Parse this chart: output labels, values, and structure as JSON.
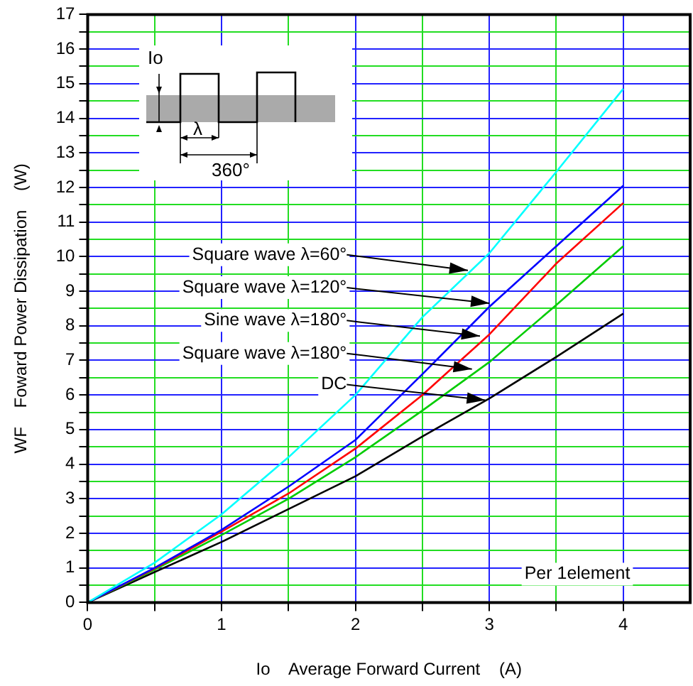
{
  "chart_data": {
    "type": "line",
    "xlabel": "Io    Average Forward Current    (A)",
    "ylabel": "WF    Foward Power Dissipation    (W)",
    "x": [
      0,
      0.5,
      1,
      1.5,
      2,
      2.5,
      3,
      3.5,
      4
    ],
    "series": [
      {
        "color": "#00ffff",
        "values": [
          0,
          1.15,
          2.55,
          4.2,
          6.0,
          8.25,
          10.1,
          12.45,
          14.85
        ]
      },
      {
        "color": "#0000ff",
        "values": [
          0,
          1.0,
          2.1,
          3.35,
          4.7,
          6.6,
          8.55,
          10.3,
          12.05
        ]
      },
      {
        "color": "#ff0000",
        "values": [
          0,
          0.98,
          2.05,
          3.15,
          4.45,
          6.0,
          7.75,
          9.8,
          11.55
        ]
      },
      {
        "color": "#00cc00",
        "values": [
          0,
          0.95,
          1.95,
          3.0,
          4.2,
          5.55,
          6.95,
          8.6,
          10.3
        ]
      },
      {
        "color": "#000000",
        "values": [
          0,
          0.88,
          1.75,
          2.7,
          3.65,
          4.8,
          5.9,
          7.1,
          8.35
        ]
      }
    ],
    "xlim": [
      0,
      4.5
    ],
    "xticks": [
      0,
      {
        "value": 0.5,
        "label": null
      },
      1,
      {
        "value": 1.5,
        "label": null
      },
      2,
      {
        "value": 2.5,
        "label": null
      },
      3,
      {
        "value": 3.5,
        "label": null
      },
      4
    ],
    "ylim": [
      0,
      17
    ],
    "yticks": [
      0,
      {
        "value": 0.5,
        "label": null
      },
      1,
      {
        "value": 1.5,
        "label": null
      },
      2,
      {
        "value": 2.5,
        "label": null
      },
      3,
      {
        "value": 3.5,
        "label": null
      },
      4,
      {
        "value": 4.5,
        "label": null
      },
      5,
      {
        "value": 5.5,
        "label": null
      },
      6,
      {
        "value": 6.5,
        "label": null
      },
      7,
      {
        "value": 7.5,
        "label": null
      },
      8,
      {
        "value": 8.5,
        "label": null
      },
      9,
      {
        "value": 9.5,
        "label": null
      },
      10,
      {
        "value": 10.5,
        "label": null
      },
      11,
      {
        "value": 11.5,
        "label": null
      },
      12,
      {
        "value": 12.5,
        "label": null
      },
      13,
      {
        "value": 13.5,
        "label": null
      },
      14,
      {
        "value": 14.5,
        "label": null
      },
      15,
      {
        "value": 15.5,
        "label": null
      },
      16,
      {
        "value": 16.5,
        "label": null
      },
      17
    ],
    "grid": true,
    "legend": false,
    "marker": "none",
    "line_style": "solid",
    "annotations": [
      "Io",
      "λ",
      "360°",
      "Per 1element",
      {
        "text": "Square wave λ=60°",
        "x": 2.84,
        "y": 9.6
      },
      {
        "text": "Square wave λ=120°",
        "x": 3.0,
        "y": 8.65
      },
      {
        "text": "Sine wave λ=180°",
        "x": 2.93,
        "y": 7.7
      },
      {
        "text": "Square wave λ=180°",
        "x": 2.87,
        "y": 6.75
      },
      {
        "text": "DC",
        "x": 2.97,
        "y": 5.85
      }
    ]
  }
}
